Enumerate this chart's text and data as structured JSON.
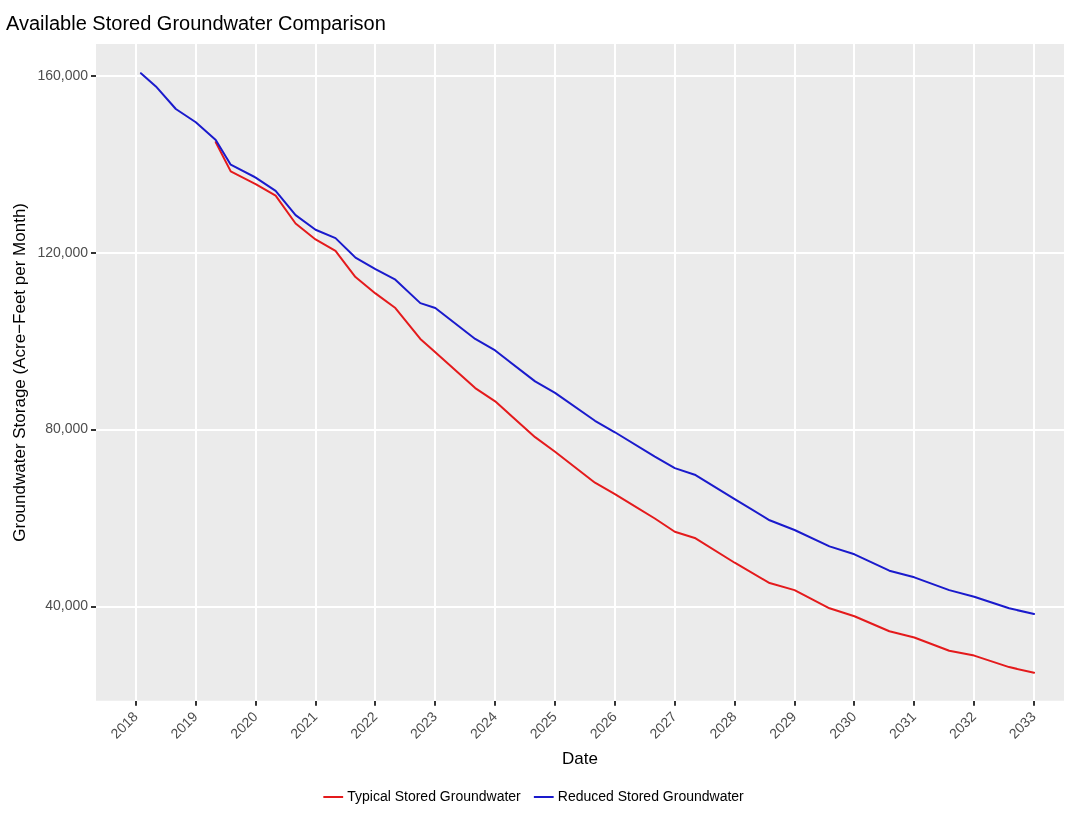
{
  "chart_data": {
    "type": "line",
    "title": "Available Stored Groundwater Comparison",
    "xlabel": "Date",
    "ylabel": "Groundwater Storage (Acre−Feet per Month)",
    "x": [
      "2018-02",
      "2018-05",
      "2018-09",
      "2019-01",
      "2019-05",
      "2019-08",
      "2020-01",
      "2020-05",
      "2020-09",
      "2021-01",
      "2021-05",
      "2021-09",
      "2022-01",
      "2022-05",
      "2022-10",
      "2023-01",
      "2023-09",
      "2024-01",
      "2024-09",
      "2025-01",
      "2025-09",
      "2026-01",
      "2026-09",
      "2027-01",
      "2027-05",
      "2028-01",
      "2028-08",
      "2029-01",
      "2029-08",
      "2030-01",
      "2030-08",
      "2031-01",
      "2031-08",
      "2032-01",
      "2032-08",
      "2033-01"
    ],
    "series": [
      {
        "name": "Typical Stored Groundwater",
        "color": "#e41a1c",
        "values": [
          null,
          null,
          null,
          null,
          145000,
          138400,
          135500,
          132900,
          126600,
          123000,
          120400,
          114500,
          110800,
          107500,
          100500,
          97500,
          89400,
          86400,
          78300,
          75000,
          68000,
          65400,
          59900,
          56900,
          55500,
          49900,
          45300,
          43700,
          39600,
          37800,
          34400,
          33000,
          30000,
          28900,
          26300,
          25000
        ]
      },
      {
        "name": "Reduced Stored Groundwater",
        "color": "#1a1acc",
        "values": [
          160600,
          157600,
          152500,
          149500,
          145500,
          139900,
          137000,
          134000,
          128500,
          125200,
          123300,
          118900,
          116300,
          113900,
          108600,
          107500,
          100500,
          97900,
          90900,
          88300,
          82000,
          79400,
          73900,
          71300,
          69800,
          64300,
          59500,
          57300,
          53600,
          51800,
          48100,
          46600,
          43700,
          42200,
          39600,
          38300
        ]
      }
    ],
    "xlim": [
      "2017-05",
      "2033-07"
    ],
    "xticks": [
      "2018",
      "2019",
      "2020",
      "2021",
      "2022",
      "2023",
      "2024",
      "2025",
      "2026",
      "2027",
      "2028",
      "2029",
      "2030",
      "2031",
      "2032",
      "2033"
    ],
    "ylim": [
      18700,
      167200
    ],
    "yticks": [
      {
        "value": 40000,
        "label": "40,000"
      },
      {
        "value": 80000,
        "label": "80,000"
      },
      {
        "value": 120000,
        "label": "120,000"
      },
      {
        "value": 160000,
        "label": "160,000"
      }
    ],
    "grid": true,
    "legend": "bottom",
    "marker": "none",
    "line_style": "solid"
  }
}
